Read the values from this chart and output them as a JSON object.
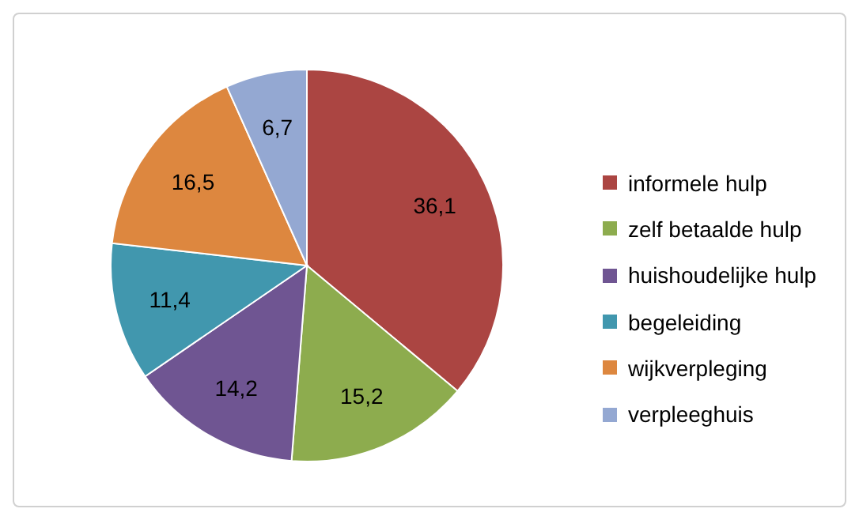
{
  "chart_data": {
    "type": "pie",
    "categories": [
      "informele hulp",
      "zelf betaalde hulp",
      "huishoudelijke hulp",
      "begeleiding",
      "wijkverpleging",
      "verpleeghuis"
    ],
    "values": [
      36.1,
      15.2,
      14.2,
      11.4,
      16.5,
      6.7
    ],
    "value_labels": [
      "36,1",
      "15,2",
      "14,2",
      "11,4",
      "16,5",
      "6,7"
    ],
    "colors": [
      "#ab4542",
      "#8dac4e",
      "#6f5592",
      "#4197ae",
      "#dd873f",
      "#94a8d2"
    ],
    "legend": "right"
  }
}
